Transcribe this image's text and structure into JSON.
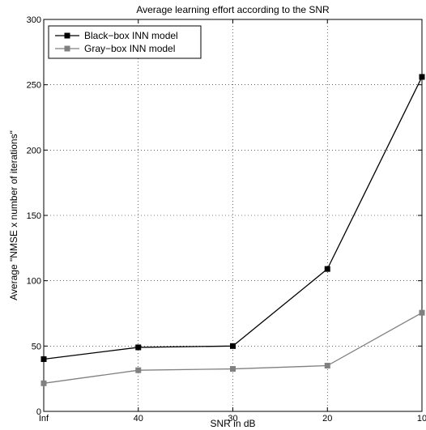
{
  "chart_data": {
    "type": "line",
    "title": "Average learning effort according to the SNR",
    "xlabel": "SNR in dB",
    "ylabel": "Average \"NMSE x number of iterations\"",
    "categories": [
      "Inf",
      "40",
      "30",
      "20",
      "10"
    ],
    "ylim": [
      0,
      300
    ],
    "yticks": [
      0,
      50,
      100,
      150,
      200,
      250,
      300
    ],
    "grid": true,
    "legend_position": "top-left",
    "series": [
      {
        "name": "Black−box INN model",
        "values": [
          40,
          49,
          50,
          109,
          256
        ],
        "color": "#000000",
        "marker": "square"
      },
      {
        "name": "Gray−box INN model",
        "values": [
          21.5,
          31.5,
          32.5,
          35,
          75.5
        ],
        "color": "#808080",
        "marker": "square"
      }
    ]
  }
}
